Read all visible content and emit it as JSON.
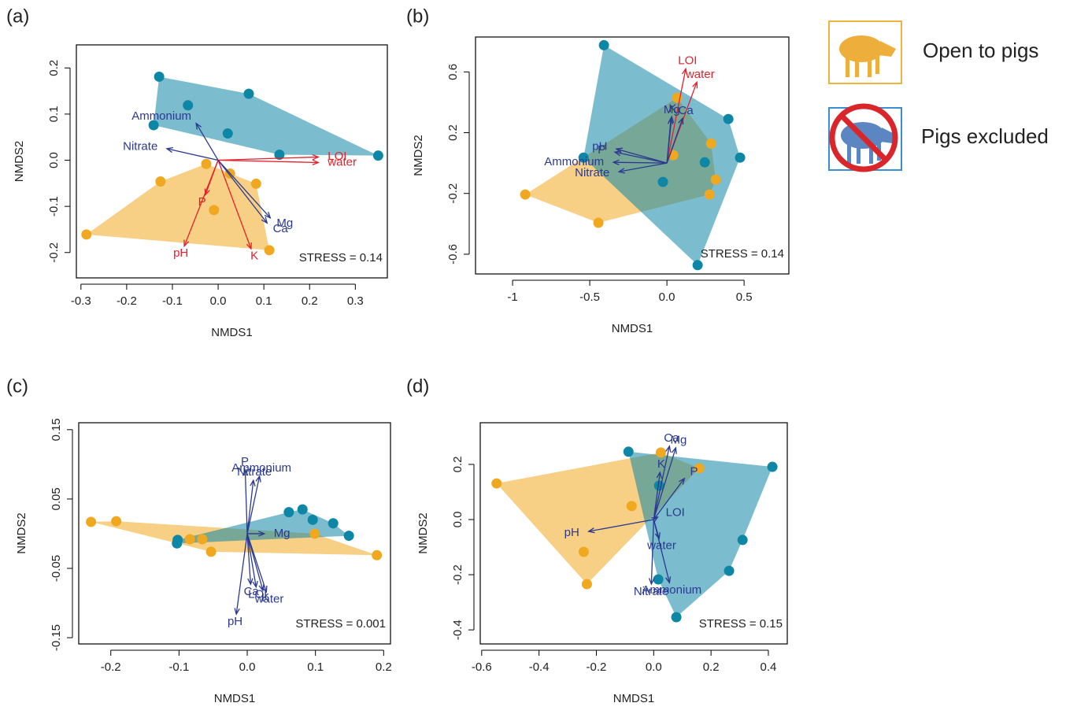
{
  "chart_data": [
    {
      "type": "scatter",
      "title": "(a)",
      "xlabel": "NMDS1",
      "ylabel": "NMDS2",
      "xlim": [
        -0.31,
        0.37
      ],
      "ylim": [
        -0.255,
        0.25
      ],
      "xticks": [
        -0.3,
        -0.2,
        -0.1,
        {
          "value": 0,
          "label": "0.0"
        },
        0.1,
        0.2,
        0.3
      ],
      "yticks": [
        -0.2,
        -0.1,
        {
          "value": 0,
          "label": "0.0"
        },
        0.1,
        0.2
      ],
      "series": [
        {
          "name": "Open to pigs",
          "color": "#f0a820",
          "x": [
            -0.288,
            -0.126,
            -0.026,
            0.026,
            -0.009,
            0.083,
            0.112
          ],
          "y": [
            -0.161,
            -0.046,
            -0.008,
            -0.029,
            -0.108,
            -0.051,
            -0.195
          ]
        },
        {
          "name": "Pigs excluded",
          "color": "#0e86a6",
          "x": [
            -0.129,
            -0.066,
            -0.141,
            0.021,
            0.067,
            0.134,
            0.35
          ],
          "y": [
            0.181,
            0.119,
            0.076,
            0.058,
            0.144,
            0.012,
            0.01
          ]
        }
      ],
      "arrows": [
        {
          "label": "Ammonium",
          "x": -0.048,
          "y": 0.08,
          "color": "#2b3990"
        },
        {
          "label": "Nitrate",
          "x": -0.112,
          "y": 0.025,
          "color": "#2b3990"
        },
        {
          "label": "LOI",
          "x": 0.219,
          "y": 0.007,
          "color": "#e4202a"
        },
        {
          "label": "water",
          "x": 0.219,
          "y": -0.005,
          "color": "#e4202a"
        },
        {
          "label": "P",
          "x": -0.028,
          "y": -0.075,
          "color": "#e4202a"
        },
        {
          "label": "pH",
          "x": -0.074,
          "y": -0.186,
          "color": "#e4202a"
        },
        {
          "label": "K",
          "x": 0.072,
          "y": -0.192,
          "color": "#e4202a"
        },
        {
          "label": "Mg",
          "x": 0.114,
          "y": -0.125,
          "color": "#2b3990"
        },
        {
          "label": "Ca",
          "x": 0.107,
          "y": -0.136,
          "color": "#2b3990"
        }
      ],
      "stress": "STRESS = 0.14"
    },
    {
      "type": "scatter",
      "title": "(b)",
      "xlabel": "NMDS1",
      "ylabel": "NMDS2",
      "xlim": [
        -1.24,
        0.79
      ],
      "ylim": [
        -0.73,
        0.83
      ],
      "xticks": [
        -1.0,
        -0.5,
        {
          "value": 0,
          "label": "0.0"
        },
        0.5
      ],
      "yticks": [
        -0.6,
        -0.2,
        0.2,
        0.6
      ],
      "series": [
        {
          "color": "#f0a820",
          "x": [
            -0.918,
            -0.444,
            0.066,
            0.041,
            0.286,
            0.316,
            0.276
          ],
          "y": [
            -0.207,
            -0.393,
            0.43,
            0.052,
            0.129,
            -0.109,
            -0.207
          ]
        },
        {
          "color": "#0e86a6",
          "x": [
            -0.408,
            0.398,
            0.474,
            0.245,
            -0.026,
            -0.54,
            0.199
          ],
          "y": [
            0.776,
            0.29,
            0.036,
            0.005,
            -0.124,
            0.036,
            -0.672
          ]
        }
      ],
      "arrows": [
        {
          "label": "LOI",
          "x": 0.122,
          "y": 0.621,
          "color": "#e4202a"
        },
        {
          "label": "water",
          "x": 0.194,
          "y": 0.533,
          "color": "#e4202a"
        },
        {
          "label": "K",
          "x": 0.031,
          "y": 0.305,
          "color": "#2b3990"
        },
        {
          "label": "Mg",
          "x": 0.026,
          "y": 0.295,
          "color": "#2b3990"
        },
        {
          "label": "Ca",
          "x": 0.102,
          "y": 0.295,
          "color": "#2b3990"
        },
        {
          "label": "pH",
          "x": -0.327,
          "y": 0.093,
          "color": "#2b3990"
        },
        {
          "label": "P",
          "x": -0.337,
          "y": 0.072,
          "color": "#2b3990"
        },
        {
          "label": "Ammonium",
          "x": -0.347,
          "y": 0.005,
          "color": "#2b3990"
        },
        {
          "label": "Nitrate",
          "x": -0.311,
          "y": -0.057,
          "color": "#2b3990"
        }
      ],
      "stress": "STRESS = 0.14"
    },
    {
      "type": "scatter",
      "title": "(c)",
      "xlabel": "NMDS1",
      "ylabel": "NMDS2",
      "xlim": [
        -0.247,
        0.21
      ],
      "ylim": [
        -0.159,
        0.16
      ],
      "xticks": [
        -0.2,
        -0.1,
        {
          "value": 0,
          "label": "0.0"
        },
        0.1,
        0.2
      ],
      "yticks": [
        -0.15,
        -0.05,
        0.05,
        0.15
      ],
      "series": [
        {
          "color": "#f0a820",
          "x": [
            -0.229,
            -0.192,
            -0.084,
            -0.066,
            -0.053,
            0.099,
            0.19
          ],
          "y": [
            0.017,
            0.018,
            -0.008,
            -0.008,
            -0.026,
            0.0,
            -0.031
          ]
        },
        {
          "color": "#0e86a6",
          "x": [
            0.061,
            0.081,
            0.096,
            0.126,
            0.149,
            -0.102,
            -0.103
          ],
          "y": [
            0.031,
            0.035,
            0.02,
            0.015,
            -0.003,
            -0.009,
            -0.014
          ]
        }
      ],
      "arrows": [
        {
          "label": "P",
          "x": -0.003,
          "y": 0.092,
          "color": "#2b3990"
        },
        {
          "label": "Ammonium",
          "x": 0.018,
          "y": 0.083,
          "color": "#2b3990"
        },
        {
          "label": "Nitrate",
          "x": 0.009,
          "y": 0.077,
          "color": "#2b3990"
        },
        {
          "label": "Mg",
          "x": 0.025,
          "y": 0.0,
          "color": "#2b3990"
        },
        {
          "label": "Ca",
          "x": 0.005,
          "y": -0.073,
          "color": "#2b3990"
        },
        {
          "label": "LOI",
          "x": 0.013,
          "y": -0.077,
          "color": "#2b3990"
        },
        {
          "label": "K",
          "x": 0.023,
          "y": -0.082,
          "color": "#2b3990"
        },
        {
          "label": "water",
          "x": 0.028,
          "y": -0.084,
          "color": "#2b3990"
        },
        {
          "label": "pH",
          "x": -0.016,
          "y": -0.116,
          "color": "#2b3990"
        }
      ],
      "stress": "STRESS = 0.001"
    },
    {
      "type": "scatter",
      "title": "(d)",
      "xlabel": "NMDS1",
      "ylabel": "NMDS2",
      "xlim": [
        -0.605,
        0.466
      ],
      "ylim": [
        -0.451,
        0.351
      ],
      "xticks": [
        -0.6,
        -0.4,
        -0.2,
        {
          "value": 0,
          "label": "0.0"
        },
        0.2,
        0.4
      ],
      "yticks": [
        -0.4,
        -0.2,
        {
          "value": 0,
          "label": "0.0"
        },
        0.2
      ],
      "series": [
        {
          "color": "#f0a820",
          "x": [
            -0.548,
            0.025,
            0.159,
            -0.077,
            -0.244,
            -0.233
          ],
          "y": [
            0.131,
            0.243,
            0.186,
            0.049,
            -0.117,
            -0.234
          ]
        },
        {
          "color": "#0e86a6",
          "x": [
            -0.088,
            0.414,
            0.31,
            0.263,
            0.079,
            0.016,
            0.019
          ],
          "y": [
            0.246,
            0.191,
            -0.074,
            -0.186,
            -0.354,
            -0.217,
            0.123
          ]
        }
      ],
      "arrows": [
        {
          "label": "Ca",
          "x": 0.055,
          "y": 0.266,
          "color": "#2b3990"
        },
        {
          "label": "Mg",
          "x": 0.077,
          "y": 0.26,
          "color": "#2b3990"
        },
        {
          "label": "K",
          "x": 0.022,
          "y": 0.171,
          "color": "#2b3990"
        },
        {
          "label": "P",
          "x": 0.107,
          "y": 0.149,
          "color": "#2b3990"
        },
        {
          "label": "LOI",
          "x": 0.014,
          "y": 0.009,
          "color": "#2b3990"
        },
        {
          "label": "pH",
          "x": -0.227,
          "y": -0.043,
          "color": "#2b3990"
        },
        {
          "label": "water",
          "x": 0.019,
          "y": -0.069,
          "color": "#2b3990"
        },
        {
          "label": "Nitrate",
          "x": -0.008,
          "y": -0.234,
          "color": "#2b3990"
        },
        {
          "label": "Ammonium",
          "x": 0.055,
          "y": -0.229,
          "color": "#2b3990"
        }
      ],
      "stress": "STRESS = 0.15"
    }
  ]
}
